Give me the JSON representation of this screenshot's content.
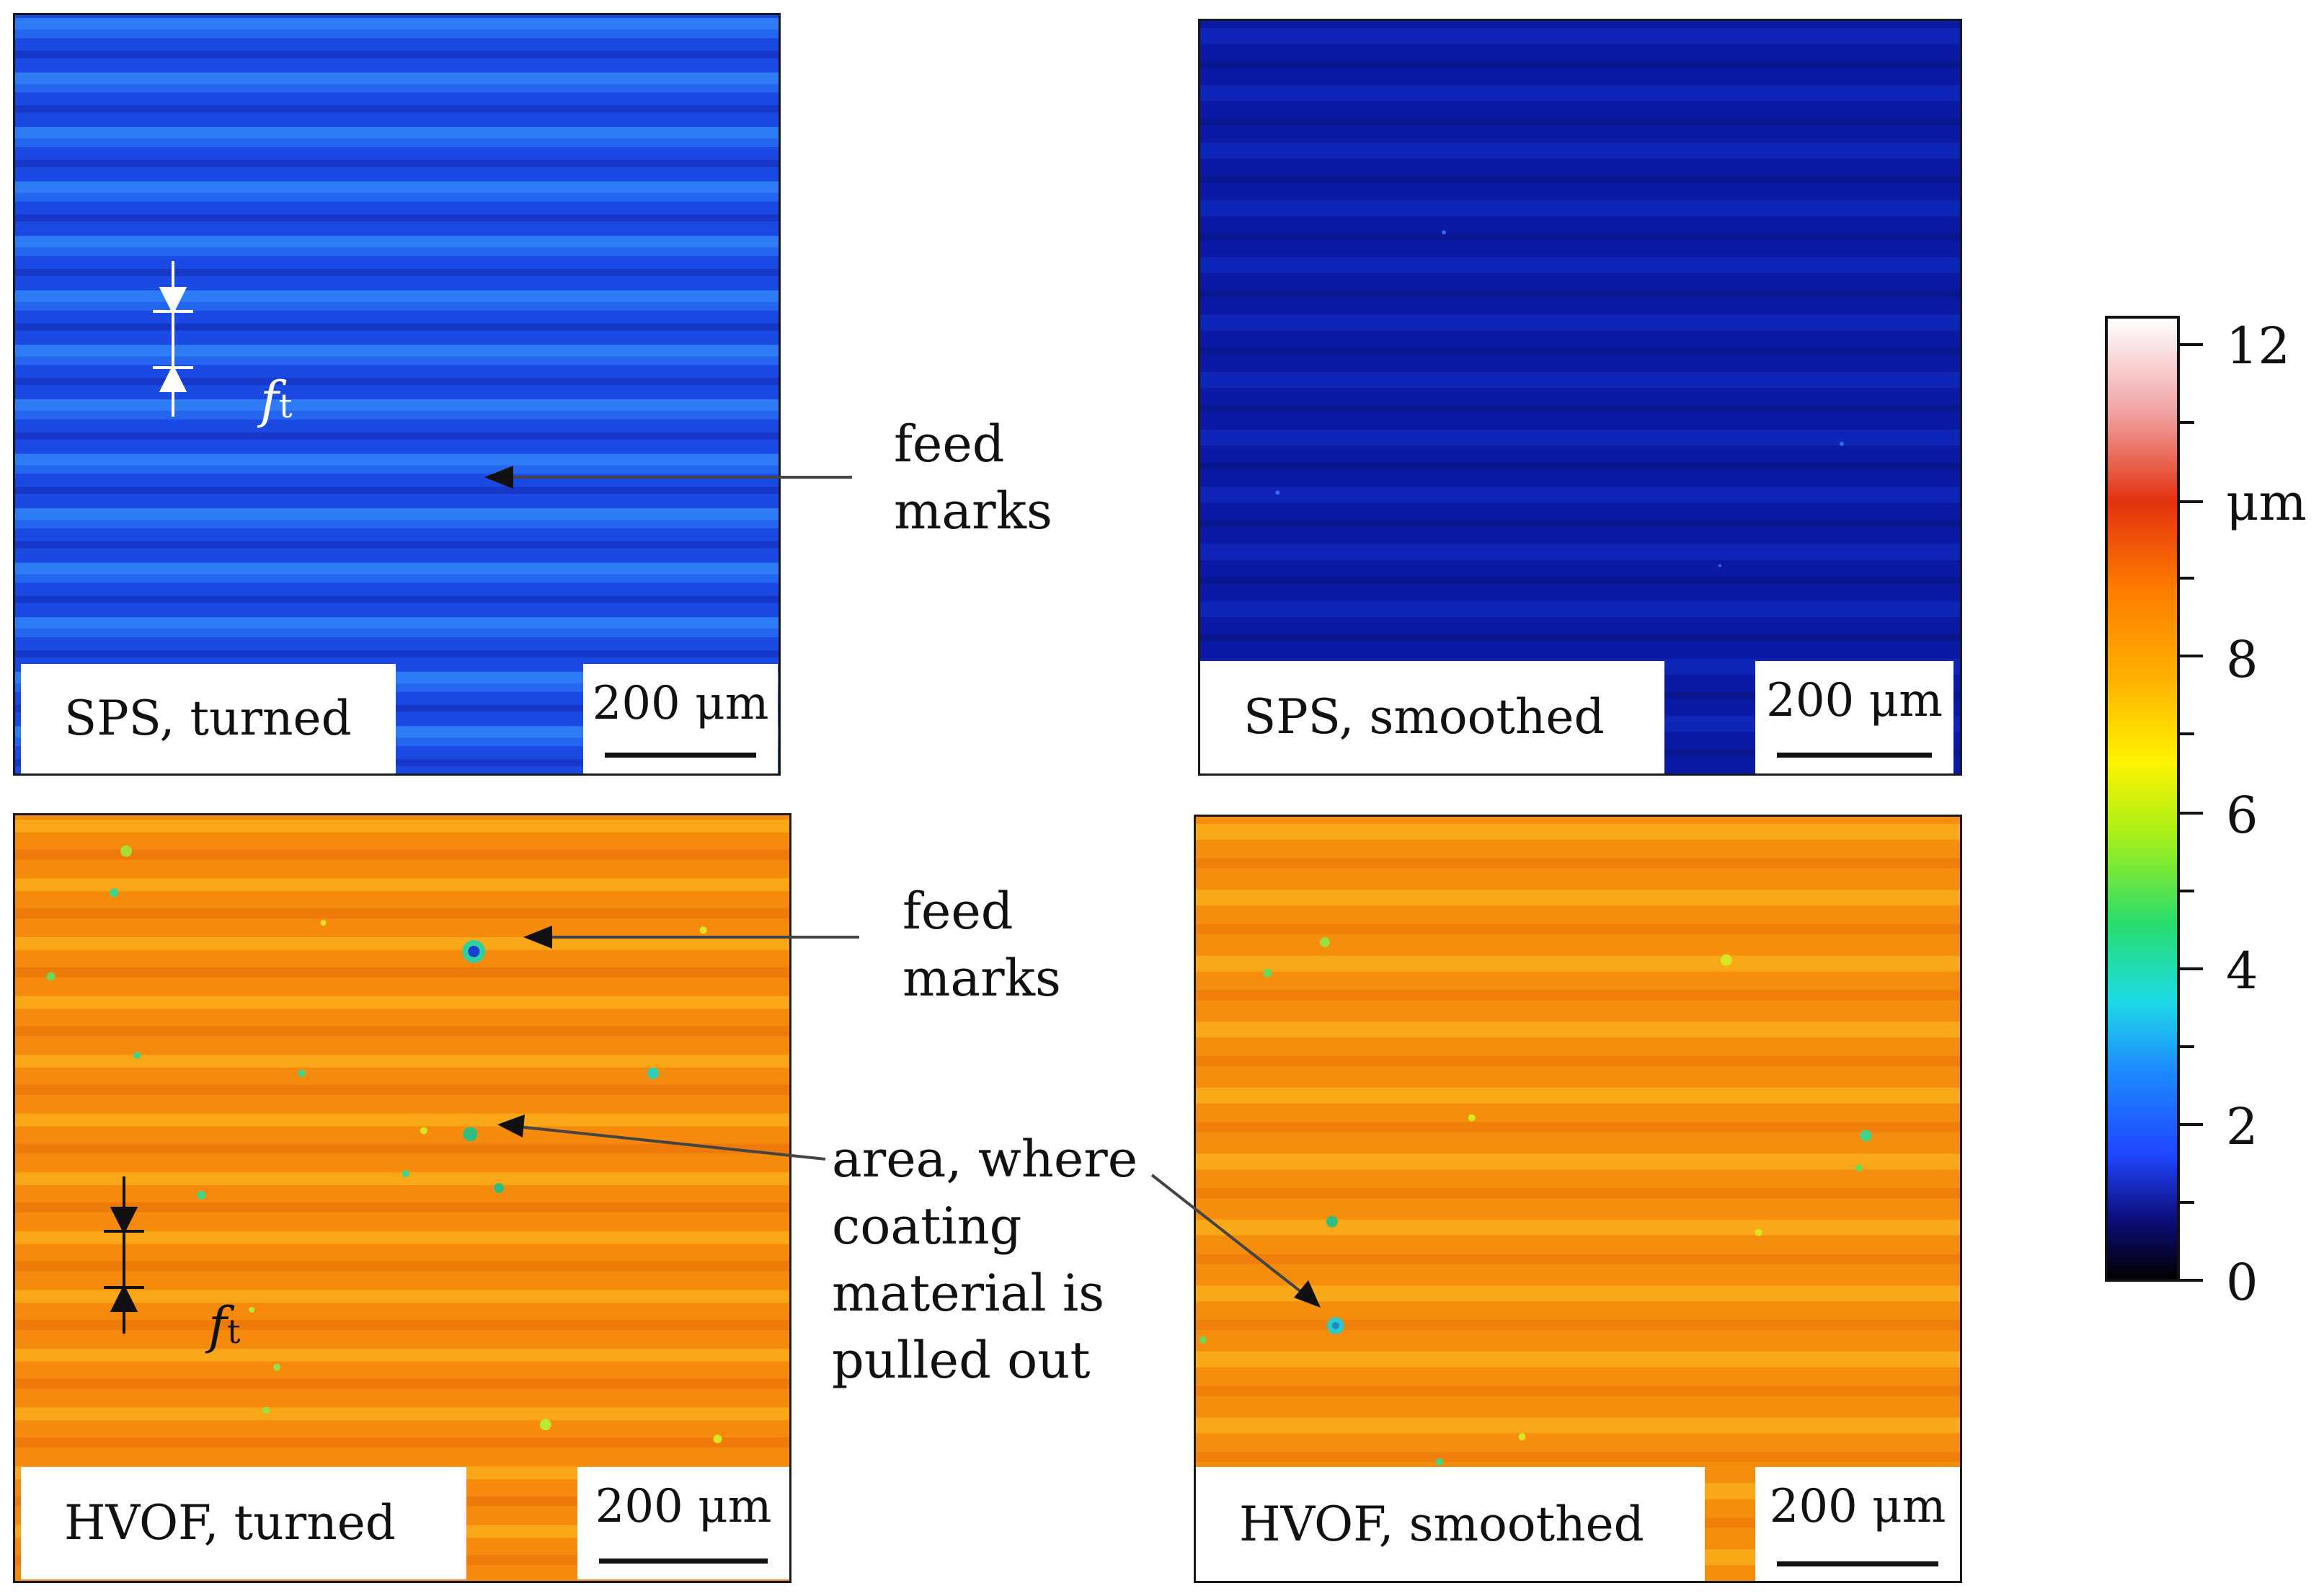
{
  "panels": {
    "sps_turned": {
      "label": "SPS, turned",
      "scale": "200 μm"
    },
    "sps_smoothed": {
      "label": "SPS, smoothed",
      "scale": "200 μm"
    },
    "hvof_turned": {
      "label": "HVOF, turned",
      "scale": "200 μm"
    },
    "hvof_smoothed": {
      "label": "HVOF, smoothed",
      "scale": "200 μm"
    }
  },
  "annotations": {
    "feed_marks_top": "feed\nmarks",
    "feed_marks_bottom": "feed\nmarks",
    "pulled_out": "area, where\ncoating\nmaterial is\npulled out",
    "ft_symbol": "f",
    "ft_subscript": "t"
  },
  "colorbar": {
    "unit": "μm",
    "ticks": [
      "12",
      "8",
      "6",
      "4",
      "2",
      "0"
    ],
    "colors": {
      "low": "#000000",
      "blue": "#1f47ff",
      "cyan": "#1edbe4",
      "green": "#28dc6c",
      "yellow": "#fff200",
      "orange": "#ff7a00",
      "red": "#e23210",
      "high": "#ffffff"
    }
  }
}
